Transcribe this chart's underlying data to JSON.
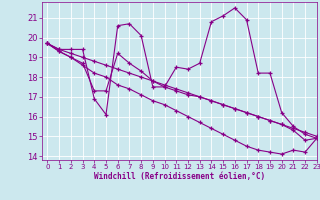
{
  "xlabel": "Windchill (Refroidissement éolien,°C)",
  "background_color": "#cce8ee",
  "line_color": "#880088",
  "xlim": [
    -0.5,
    23
  ],
  "ylim": [
    13.8,
    21.8
  ],
  "yticks": [
    14,
    15,
    16,
    17,
    18,
    19,
    20,
    21
  ],
  "xticks": [
    0,
    1,
    2,
    3,
    4,
    5,
    6,
    7,
    8,
    9,
    10,
    11,
    12,
    13,
    14,
    15,
    16,
    17,
    18,
    19,
    20,
    21,
    22,
    23
  ],
  "series": [
    [
      19.7,
      19.4,
      19.4,
      19.4,
      16.9,
      16.1,
      20.6,
      20.7,
      20.1,
      17.5,
      17.5,
      18.5,
      18.4,
      18.7,
      20.8,
      21.1,
      21.5,
      20.9,
      18.2,
      18.2,
      16.2,
      15.5,
      15.1,
      14.9
    ],
    [
      19.7,
      19.4,
      19.2,
      19.0,
      18.8,
      18.6,
      18.4,
      18.2,
      18.0,
      17.8,
      17.6,
      17.4,
      17.2,
      17.0,
      16.8,
      16.6,
      16.4,
      16.2,
      16.0,
      15.8,
      15.6,
      15.4,
      15.2,
      15.0
    ],
    [
      19.7,
      19.3,
      19.0,
      18.7,
      17.3,
      17.3,
      19.2,
      18.7,
      18.3,
      17.8,
      17.5,
      17.3,
      17.1,
      17.0,
      16.8,
      16.6,
      16.4,
      16.2,
      16.0,
      15.8,
      15.6,
      15.3,
      14.8,
      14.9
    ],
    [
      19.7,
      19.3,
      19.0,
      18.6,
      18.2,
      18.0,
      17.6,
      17.4,
      17.1,
      16.8,
      16.6,
      16.3,
      16.0,
      15.7,
      15.4,
      15.1,
      14.8,
      14.5,
      14.3,
      14.2,
      14.1,
      14.3,
      14.2,
      14.9
    ]
  ]
}
